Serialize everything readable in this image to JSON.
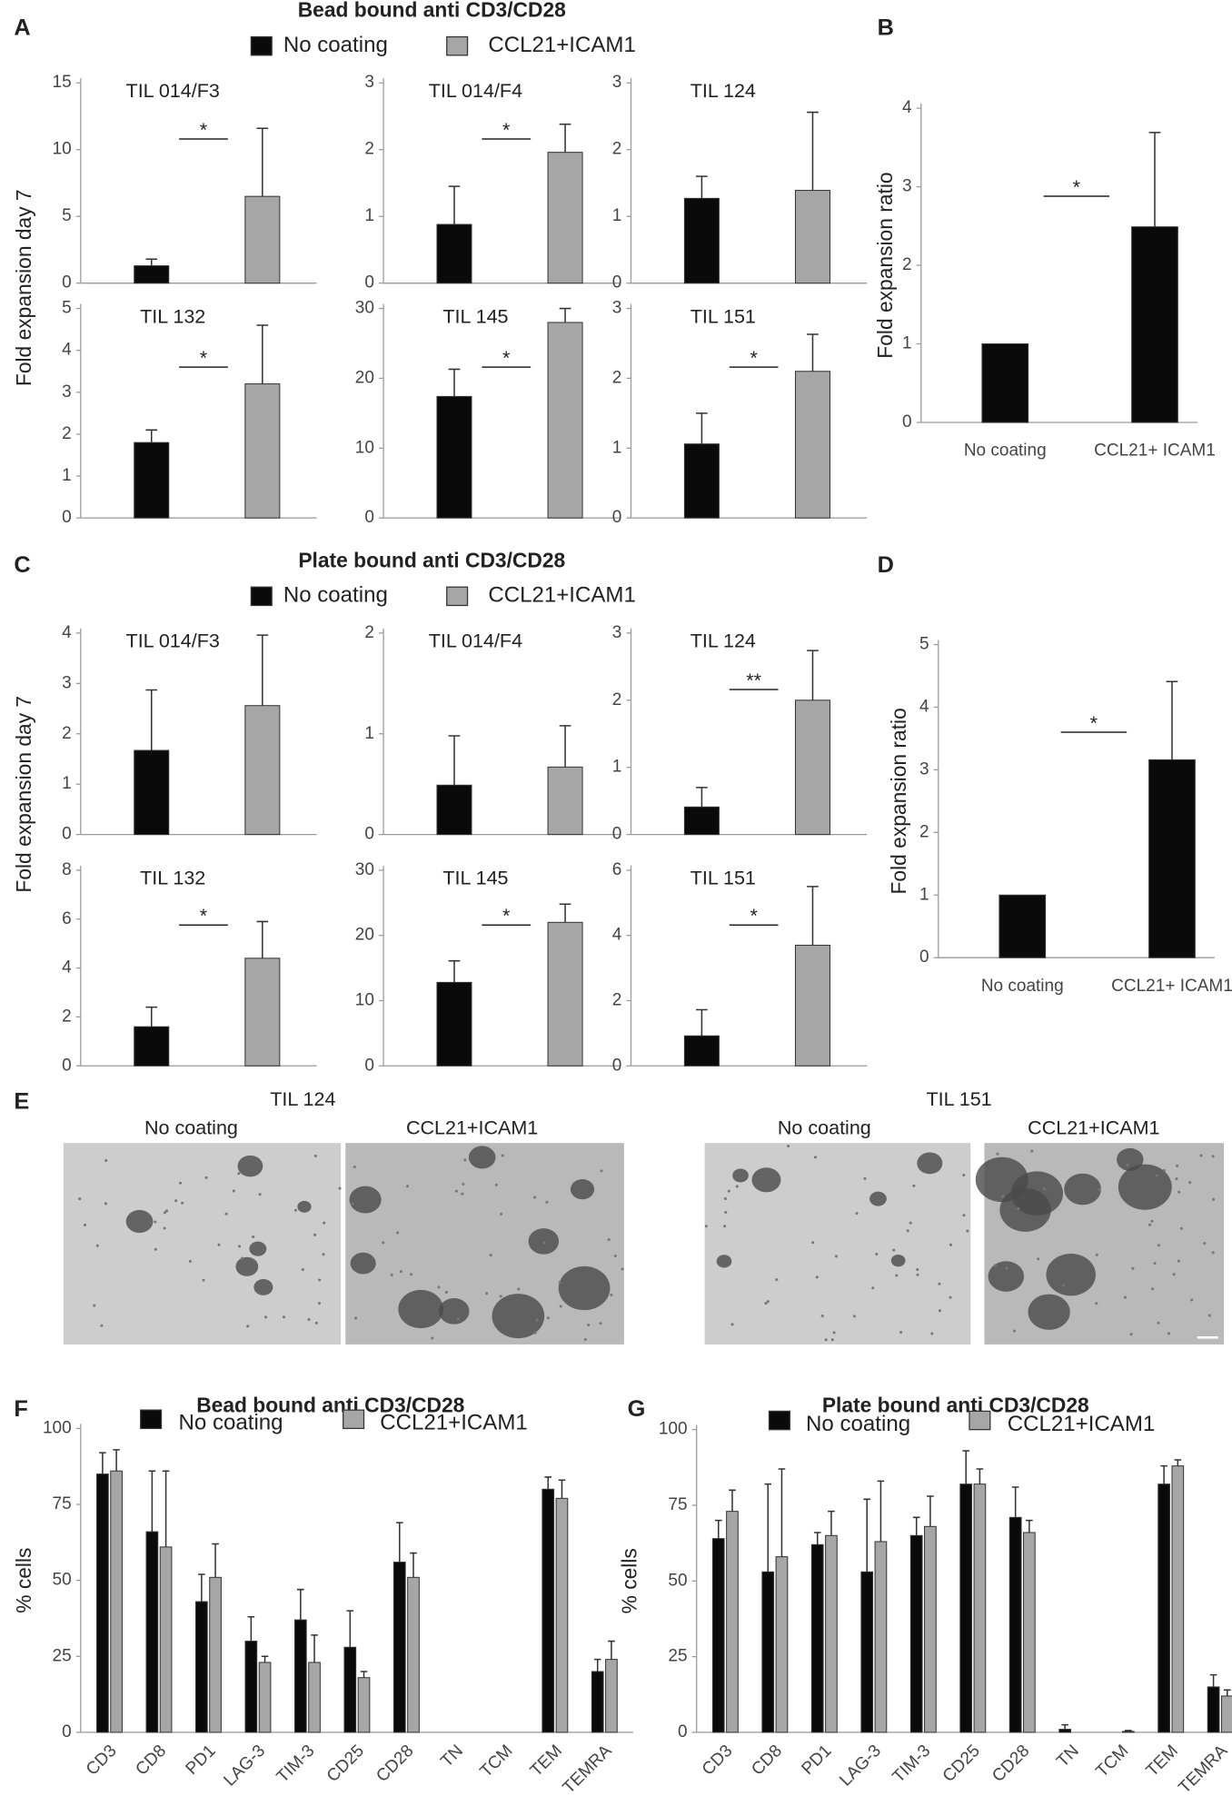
{
  "panel_labels": [
    "A",
    "B",
    "C",
    "D",
    "E",
    "F",
    "G"
  ],
  "groups": [
    {
      "title": "Bead bound anti CD3/CD28",
      "ylabel": "Fold expansion day 7",
      "legend": [
        {
          "name": "No coating",
          "color": "#0a0a0a"
        },
        {
          "name": "CCL21+ICAM1",
          "color": "#a6a6a6"
        }
      ]
    },
    {
      "title": "Plate bound anti CD3/CD28",
      "ylabel": "Fold expansion day 7",
      "legend": [
        {
          "name": "No coating",
          "color": "#0a0a0a"
        },
        {
          "name": "CCL21+ICAM1",
          "color": "#a6a6a6"
        }
      ]
    }
  ],
  "image_panels": [
    {
      "title": "TIL  124",
      "captions": [
        "No coating",
        "CCL21+ICAM1"
      ]
    },
    {
      "title": "TIL  151",
      "captions": [
        "No coating",
        "CCL21+ICAM1"
      ]
    }
  ],
  "chart_data": [
    {
      "type": "bar",
      "title": "TIL 014/F3",
      "values": [
        1.3,
        6.5
      ],
      "errors": [
        0.5,
        5.1
      ],
      "colors": [
        "#0a0a0a",
        "#a6a6a6"
      ],
      "ylim": [
        0,
        15
      ],
      "yticks": [
        0,
        5,
        10,
        15
      ],
      "significance": "*"
    },
    {
      "type": "bar",
      "title": "TIL 014/F4",
      "values": [
        0.88,
        1.96
      ],
      "errors": [
        0.57,
        0.42
      ],
      "colors": [
        "#0a0a0a",
        "#a6a6a6"
      ],
      "ylim": [
        0,
        3
      ],
      "yticks": [
        0,
        1,
        2,
        3
      ],
      "significance": "*"
    },
    {
      "type": "bar",
      "title": "TIL 124",
      "values": [
        1.27,
        1.39
      ],
      "errors": [
        0.33,
        1.17
      ],
      "colors": [
        "#0a0a0a",
        "#a6a6a6"
      ],
      "ylim": [
        0,
        3
      ],
      "yticks": [
        0,
        1,
        2,
        3
      ]
    },
    {
      "type": "bar",
      "title": "TIL 132",
      "values": [
        1.8,
        3.2
      ],
      "errors": [
        0.3,
        1.4
      ],
      "colors": [
        "#0a0a0a",
        "#a6a6a6"
      ],
      "ylim": [
        0,
        5
      ],
      "yticks": [
        0,
        1,
        2,
        3,
        4,
        5
      ],
      "significance": "*"
    },
    {
      "type": "bar",
      "title": "TIL 145",
      "values": [
        17.4,
        28
      ],
      "errors": [
        3.9,
        2
      ],
      "colors": [
        "#0a0a0a",
        "#a6a6a6"
      ],
      "ylim": [
        0,
        30
      ],
      "yticks": [
        0,
        10,
        20,
        30
      ],
      "significance": "*"
    },
    {
      "type": "bar",
      "title": "TIL 151",
      "values": [
        1.06,
        2.1
      ],
      "errors": [
        0.44,
        0.53
      ],
      "colors": [
        "#0a0a0a",
        "#a6a6a6"
      ],
      "ylim": [
        0,
        3
      ],
      "yticks": [
        0,
        1,
        2,
        3
      ],
      "significance": "*"
    },
    {
      "type": "bar",
      "ylabel": "Fold expansion ratio",
      "categories": [
        "No coating",
        "CCL21+ ICAM1"
      ],
      "values": [
        1.0,
        2.49
      ],
      "errors": [
        0,
        1.2
      ],
      "color": "#0a0a0a",
      "ylim": [
        0,
        4
      ],
      "yticks": [
        0,
        1,
        2,
        3,
        4
      ],
      "significance": "*"
    },
    {
      "type": "bar",
      "title": "TIL 014/F3",
      "values": [
        1.67,
        2.56
      ],
      "errors": [
        1.2,
        1.4
      ],
      "colors": [
        "#0a0a0a",
        "#a6a6a6"
      ],
      "ylim": [
        0,
        4
      ],
      "yticks": [
        0,
        1,
        2,
        3,
        4
      ]
    },
    {
      "type": "bar",
      "title": "TIL 014/F4",
      "values": [
        0.49,
        0.67
      ],
      "errors": [
        0.49,
        0.41
      ],
      "colors": [
        "#0a0a0a",
        "#a6a6a6"
      ],
      "ylim": [
        0,
        2
      ],
      "yticks": [
        0,
        1,
        2
      ]
    },
    {
      "type": "bar",
      "title": "TIL 124",
      "values": [
        0.41,
        2.0
      ],
      "errors": [
        0.29,
        0.74
      ],
      "colors": [
        "#0a0a0a",
        "#a6a6a6"
      ],
      "ylim": [
        0,
        3
      ],
      "yticks": [
        0,
        1,
        2,
        3
      ],
      "significance": "**"
    },
    {
      "type": "bar",
      "title": "TIL 132",
      "values": [
        1.6,
        4.4
      ],
      "errors": [
        0.8,
        1.5
      ],
      "colors": [
        "#0a0a0a",
        "#a6a6a6"
      ],
      "ylim": [
        0,
        8
      ],
      "yticks": [
        0,
        2,
        4,
        6,
        8
      ],
      "significance": "*"
    },
    {
      "type": "bar",
      "title": "TIL 145",
      "values": [
        12.8,
        22
      ],
      "errors": [
        3.3,
        2.8
      ],
      "colors": [
        "#0a0a0a",
        "#a6a6a6"
      ],
      "ylim": [
        0,
        30
      ],
      "yticks": [
        0,
        10,
        20,
        30
      ],
      "significance": "*"
    },
    {
      "type": "bar",
      "title": "TIL 151",
      "values": [
        0.92,
        3.7
      ],
      "errors": [
        0.8,
        1.8
      ],
      "colors": [
        "#0a0a0a",
        "#a6a6a6"
      ],
      "ylim": [
        0,
        6
      ],
      "yticks": [
        0,
        2,
        4,
        6
      ],
      "significance": "*"
    },
    {
      "type": "bar",
      "ylabel": "Fold expansion ratio",
      "categories": [
        "No coating",
        "CCL21+ ICAM1"
      ],
      "values": [
        1.0,
        3.16
      ],
      "errors": [
        0,
        1.25
      ],
      "color": "#0a0a0a",
      "ylim": [
        0,
        5
      ],
      "yticks": [
        0,
        1,
        2,
        3,
        4,
        5
      ],
      "significance": "*"
    },
    {
      "type": "bar",
      "title": "Bead bound anti CD3/CD28",
      "ylabel": "% cells",
      "categories": [
        "CD3",
        "CD8",
        "PD1",
        "LAG-3",
        "TIM-3",
        "CD25",
        "CD28",
        "TN",
        "TCM",
        "TEM",
        "TEMRA"
      ],
      "series": [
        {
          "name": "No coating",
          "color": "#0a0a0a",
          "values": [
            85,
            66,
            43,
            30,
            37,
            28,
            56,
            0,
            0,
            80,
            20
          ],
          "errors": [
            7,
            20,
            9,
            8,
            10,
            12,
            13,
            0,
            0,
            4,
            4
          ]
        },
        {
          "name": "CCL21+ICAM1",
          "color": "#a6a6a6",
          "values": [
            86,
            61,
            51,
            23,
            23,
            18,
            51,
            0,
            0,
            77,
            24
          ],
          "errors": [
            7,
            25,
            11,
            2,
            9,
            2,
            8,
            0,
            0,
            6,
            6
          ]
        }
      ],
      "ylim": [
        0,
        100
      ],
      "yticks": [
        0,
        25,
        50,
        75,
        100
      ]
    },
    {
      "type": "bar",
      "title": "Plate bound anti CD3/CD28",
      "ylabel": "% cells",
      "categories": [
        "CD3",
        "CD8",
        "PD1",
        "LAG-3",
        "TIM-3",
        "CD25",
        "CD28",
        "TN",
        "TCM",
        "TEM",
        "TEMRA"
      ],
      "series": [
        {
          "name": "No coating",
          "color": "#0a0a0a",
          "values": [
            64,
            53,
            62,
            53,
            65,
            82,
            71,
            1,
            0,
            82,
            15
          ],
          "errors": [
            6,
            29,
            4,
            24,
            6,
            11,
            10,
            1.5,
            0,
            6,
            4
          ]
        },
        {
          "name": "CCL21+ICAM1",
          "color": "#a6a6a6",
          "values": [
            73,
            58,
            65,
            63,
            68,
            82,
            66,
            0,
            0.3,
            88,
            12
          ],
          "errors": [
            7,
            29,
            8,
            20,
            10,
            5,
            4,
            0,
            0.3,
            2,
            2
          ]
        }
      ],
      "ylim": [
        0,
        100
      ],
      "yticks": [
        0,
        25,
        50,
        75,
        100
      ]
    }
  ]
}
